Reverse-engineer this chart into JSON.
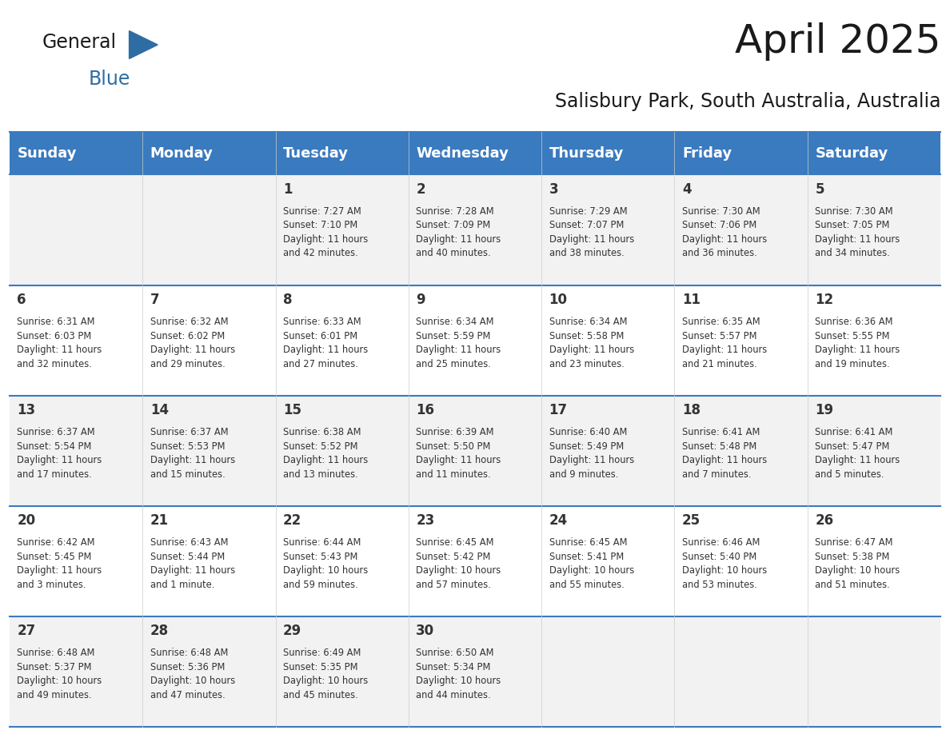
{
  "title": "April 2025",
  "subtitle": "Salisbury Park, South Australia, Australia",
  "days_of_week": [
    "Sunday",
    "Monday",
    "Tuesday",
    "Wednesday",
    "Thursday",
    "Friday",
    "Saturday"
  ],
  "header_bg": "#3a7abf",
  "header_text_color": "#ffffff",
  "row_bg_light": "#f2f2f2",
  "row_bg_white": "#ffffff",
  "border_color": "#3a7abf",
  "text_color": "#333333",
  "logo_text_color": "#1a1a1a",
  "logo_blue_color": "#2e6da4",
  "weeks": [
    [
      {
        "day": "",
        "info": ""
      },
      {
        "day": "",
        "info": ""
      },
      {
        "day": "1",
        "info": "Sunrise: 7:27 AM\nSunset: 7:10 PM\nDaylight: 11 hours\nand 42 minutes."
      },
      {
        "day": "2",
        "info": "Sunrise: 7:28 AM\nSunset: 7:09 PM\nDaylight: 11 hours\nand 40 minutes."
      },
      {
        "day": "3",
        "info": "Sunrise: 7:29 AM\nSunset: 7:07 PM\nDaylight: 11 hours\nand 38 minutes."
      },
      {
        "day": "4",
        "info": "Sunrise: 7:30 AM\nSunset: 7:06 PM\nDaylight: 11 hours\nand 36 minutes."
      },
      {
        "day": "5",
        "info": "Sunrise: 7:30 AM\nSunset: 7:05 PM\nDaylight: 11 hours\nand 34 minutes."
      }
    ],
    [
      {
        "day": "6",
        "info": "Sunrise: 6:31 AM\nSunset: 6:03 PM\nDaylight: 11 hours\nand 32 minutes."
      },
      {
        "day": "7",
        "info": "Sunrise: 6:32 AM\nSunset: 6:02 PM\nDaylight: 11 hours\nand 29 minutes."
      },
      {
        "day": "8",
        "info": "Sunrise: 6:33 AM\nSunset: 6:01 PM\nDaylight: 11 hours\nand 27 minutes."
      },
      {
        "day": "9",
        "info": "Sunrise: 6:34 AM\nSunset: 5:59 PM\nDaylight: 11 hours\nand 25 minutes."
      },
      {
        "day": "10",
        "info": "Sunrise: 6:34 AM\nSunset: 5:58 PM\nDaylight: 11 hours\nand 23 minutes."
      },
      {
        "day": "11",
        "info": "Sunrise: 6:35 AM\nSunset: 5:57 PM\nDaylight: 11 hours\nand 21 minutes."
      },
      {
        "day": "12",
        "info": "Sunrise: 6:36 AM\nSunset: 5:55 PM\nDaylight: 11 hours\nand 19 minutes."
      }
    ],
    [
      {
        "day": "13",
        "info": "Sunrise: 6:37 AM\nSunset: 5:54 PM\nDaylight: 11 hours\nand 17 minutes."
      },
      {
        "day": "14",
        "info": "Sunrise: 6:37 AM\nSunset: 5:53 PM\nDaylight: 11 hours\nand 15 minutes."
      },
      {
        "day": "15",
        "info": "Sunrise: 6:38 AM\nSunset: 5:52 PM\nDaylight: 11 hours\nand 13 minutes."
      },
      {
        "day": "16",
        "info": "Sunrise: 6:39 AM\nSunset: 5:50 PM\nDaylight: 11 hours\nand 11 minutes."
      },
      {
        "day": "17",
        "info": "Sunrise: 6:40 AM\nSunset: 5:49 PM\nDaylight: 11 hours\nand 9 minutes."
      },
      {
        "day": "18",
        "info": "Sunrise: 6:41 AM\nSunset: 5:48 PM\nDaylight: 11 hours\nand 7 minutes."
      },
      {
        "day": "19",
        "info": "Sunrise: 6:41 AM\nSunset: 5:47 PM\nDaylight: 11 hours\nand 5 minutes."
      }
    ],
    [
      {
        "day": "20",
        "info": "Sunrise: 6:42 AM\nSunset: 5:45 PM\nDaylight: 11 hours\nand 3 minutes."
      },
      {
        "day": "21",
        "info": "Sunrise: 6:43 AM\nSunset: 5:44 PM\nDaylight: 11 hours\nand 1 minute."
      },
      {
        "day": "22",
        "info": "Sunrise: 6:44 AM\nSunset: 5:43 PM\nDaylight: 10 hours\nand 59 minutes."
      },
      {
        "day": "23",
        "info": "Sunrise: 6:45 AM\nSunset: 5:42 PM\nDaylight: 10 hours\nand 57 minutes."
      },
      {
        "day": "24",
        "info": "Sunrise: 6:45 AM\nSunset: 5:41 PM\nDaylight: 10 hours\nand 55 minutes."
      },
      {
        "day": "25",
        "info": "Sunrise: 6:46 AM\nSunset: 5:40 PM\nDaylight: 10 hours\nand 53 minutes."
      },
      {
        "day": "26",
        "info": "Sunrise: 6:47 AM\nSunset: 5:38 PM\nDaylight: 10 hours\nand 51 minutes."
      }
    ],
    [
      {
        "day": "27",
        "info": "Sunrise: 6:48 AM\nSunset: 5:37 PM\nDaylight: 10 hours\nand 49 minutes."
      },
      {
        "day": "28",
        "info": "Sunrise: 6:48 AM\nSunset: 5:36 PM\nDaylight: 10 hours\nand 47 minutes."
      },
      {
        "day": "29",
        "info": "Sunrise: 6:49 AM\nSunset: 5:35 PM\nDaylight: 10 hours\nand 45 minutes."
      },
      {
        "day": "30",
        "info": "Sunrise: 6:50 AM\nSunset: 5:34 PM\nDaylight: 10 hours\nand 44 minutes."
      },
      {
        "day": "",
        "info": ""
      },
      {
        "day": "",
        "info": ""
      },
      {
        "day": "",
        "info": ""
      }
    ]
  ]
}
